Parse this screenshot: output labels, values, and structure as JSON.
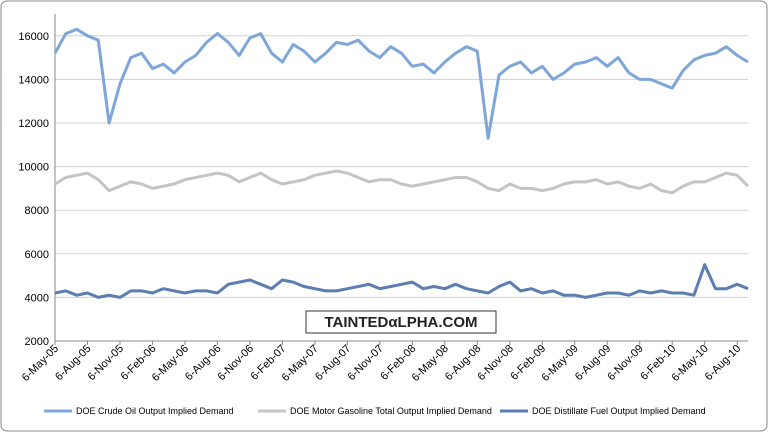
{
  "chart_data": {
    "type": "line",
    "watermark": "TAINTEDαLPHA.COM",
    "categories": [
      "6-May-05",
      null,
      null,
      "6-Aug-05",
      null,
      null,
      "6-Nov-05",
      null,
      null,
      "6-Feb-06",
      null,
      null,
      "6-May-06",
      null,
      null,
      "6-Aug-06",
      null,
      null,
      "6-Nov-06",
      null,
      null,
      "6-Feb-07",
      null,
      null,
      "6-May-07",
      null,
      null,
      "6-Aug-07",
      null,
      null,
      "6-Nov-07",
      null,
      null,
      "6-Feb-08",
      null,
      null,
      "6-May-08",
      null,
      null,
      "6-Aug-08",
      null,
      null,
      "6-Nov-08",
      null,
      null,
      "6-Feb-09",
      null,
      null,
      "6-May-09",
      null,
      null,
      "6-Aug-09",
      null,
      null,
      "6-Nov-09",
      null,
      null,
      "6-Feb-10",
      null,
      null,
      "6-May-10",
      null,
      null,
      "6-Aug-10",
      null
    ],
    "series": [
      {
        "name": "DOE Crude Oil Output Implied Demand",
        "color": "#7ea6d8",
        "values": [
          15200,
          16100,
          16300,
          16000,
          15800,
          12000,
          13800,
          15000,
          15200,
          14500,
          14700,
          14300,
          14800,
          15100,
          15700,
          16100,
          15700,
          15100,
          15900,
          16100,
          15200,
          14800,
          15600,
          15300,
          14800,
          15200,
          15700,
          15600,
          15800,
          15300,
          15000,
          15500,
          15200,
          14600,
          14700,
          14300,
          14800,
          15200,
          15500,
          15300,
          11300,
          14200,
          14600,
          14800,
          14300,
          14600,
          14000,
          14300,
          14700,
          14800,
          15000,
          14600,
          15000,
          14300,
          14000,
          14000,
          13800,
          13600,
          14400,
          14900,
          15100,
          15200,
          15500,
          15100,
          14800
        ]
      },
      {
        "name": "DOE Motor Gasoline Total Output Implied Demand",
        "color": "#c4c4c4",
        "values": [
          9200,
          9500,
          9600,
          9700,
          9400,
          8900,
          9100,
          9300,
          9200,
          9000,
          9100,
          9200,
          9400,
          9500,
          9600,
          9700,
          9600,
          9300,
          9500,
          9700,
          9400,
          9200,
          9300,
          9400,
          9600,
          9700,
          9800,
          9700,
          9500,
          9300,
          9400,
          9400,
          9200,
          9100,
          9200,
          9300,
          9400,
          9500,
          9500,
          9300,
          9000,
          8900,
          9200,
          9000,
          9000,
          8900,
          9000,
          9200,
          9300,
          9300,
          9400,
          9200,
          9300,
          9100,
          9000,
          9200,
          8900,
          8800,
          9100,
          9300,
          9300,
          9500,
          9700,
          9600,
          9100
        ]
      },
      {
        "name": "DOE Distillate Fuel Output Implied Demand",
        "color": "#5b7db1",
        "values": [
          4200,
          4300,
          4100,
          4200,
          4000,
          4100,
          4000,
          4300,
          4300,
          4200,
          4400,
          4300,
          4200,
          4300,
          4300,
          4200,
          4600,
          4700,
          4800,
          4600,
          4400,
          4800,
          4700,
          4500,
          4400,
          4300,
          4300,
          4400,
          4500,
          4600,
          4400,
          4500,
          4600,
          4700,
          4400,
          4500,
          4400,
          4600,
          4400,
          4300,
          4200,
          4500,
          4700,
          4300,
          4400,
          4200,
          4300,
          4100,
          4100,
          4000,
          4100,
          4200,
          4200,
          4100,
          4300,
          4200,
          4300,
          4200,
          4200,
          4100,
          5500,
          4400,
          4400,
          4600,
          4400
        ]
      }
    ],
    "ylim": [
      2000,
      17000
    ],
    "yticks": [
      2000,
      4000,
      6000,
      8000,
      10000,
      12000,
      14000,
      16000
    ],
    "grid": true,
    "legend": "bottom"
  }
}
